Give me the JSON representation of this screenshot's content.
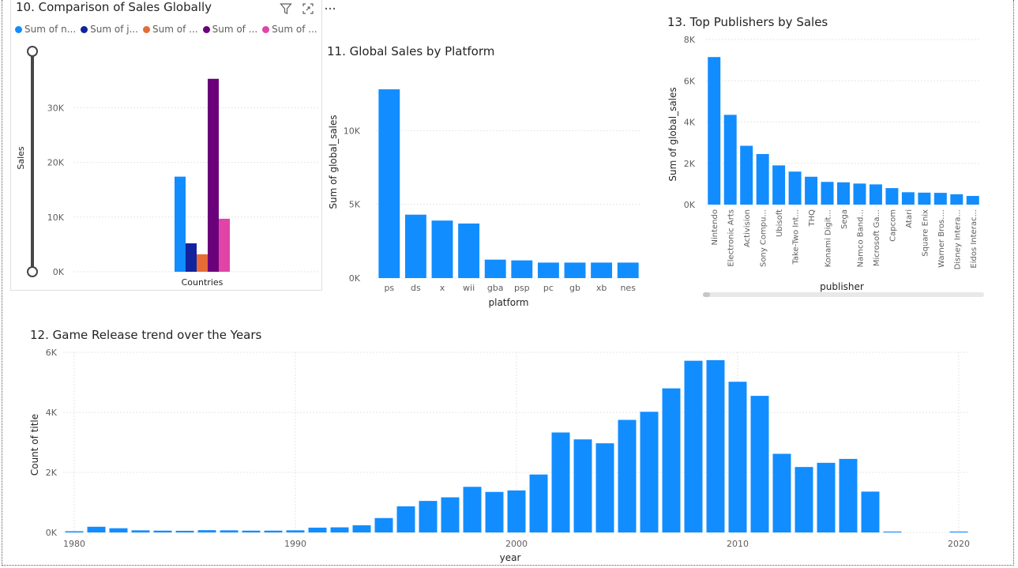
{
  "colors": {
    "blue": "#118DFF",
    "navy": "#12239E",
    "orange": "#E66C37",
    "purple": "#6B007B",
    "pink": "#E044A7",
    "grid": "#e6e6e6",
    "axis_text": "#605e5c"
  },
  "header_icons": [
    "filter-icon",
    "focus-mode-icon",
    "more-options-icon"
  ],
  "chart_data": [
    {
      "id": "comparison",
      "type": "bar",
      "title": "10. Comparison of Sales Globally",
      "ylabel": "Sales",
      "xlabel": "",
      "categories": [
        "Countries"
      ],
      "ylim": [
        0,
        37000
      ],
      "yticks": [
        0,
        10000,
        20000,
        30000
      ],
      "ytick_labels": [
        "0K",
        "10K",
        "20K",
        "30K"
      ],
      "series": [
        {
          "name": "Sum of n...",
          "color": "#118DFF",
          "values": [
            17400
          ]
        },
        {
          "name": "Sum of j...",
          "color": "#12239E",
          "values": [
            5200
          ]
        },
        {
          "name": "Sum of ...",
          "color": "#E66C37",
          "values": [
            3200
          ]
        },
        {
          "name": "Sum of ...",
          "color": "#6B007B",
          "values": [
            35300
          ]
        },
        {
          "name": "Sum of ...",
          "color": "#E044A7",
          "values": [
            9700
          ]
        }
      ]
    },
    {
      "id": "platform",
      "type": "bar",
      "title": "11. Global Sales by Platform",
      "ylabel": "Sum of global_sales",
      "xlabel": "platform",
      "categories": [
        "ps",
        "ds",
        "x",
        "wii",
        "gba",
        "psp",
        "pc",
        "gb",
        "xb",
        "nes"
      ],
      "values": [
        12800,
        4300,
        3900,
        3700,
        1250,
        1200,
        1050,
        1050,
        1050,
        1050
      ],
      "ylim": [
        0,
        13500
      ],
      "yticks": [
        0,
        5000,
        10000
      ],
      "ytick_labels": [
        "0K",
        "5K",
        "10K"
      ]
    },
    {
      "id": "publishers",
      "type": "bar",
      "title": "13. Top Publishers by Sales",
      "ylabel": "Sum of global_sales",
      "xlabel": "publisher",
      "categories": [
        "Nintendo",
        "Electronic Arts",
        "Activision",
        "Sony Compu...",
        "Ubisoft",
        "Take-Two Int...",
        "THQ",
        "Konami Digit...",
        "Sega",
        "Namco Band...",
        "Microsoft Ga...",
        "Capcom",
        "Atari",
        "Square Enix",
        "Warner Bros....",
        "Disney Intera...",
        "Eidos Interac..."
      ],
      "values": [
        7150,
        4350,
        2850,
        2450,
        1900,
        1600,
        1350,
        1100,
        1080,
        1020,
        980,
        800,
        600,
        580,
        570,
        500,
        420
      ],
      "ylim": [
        0,
        8000
      ],
      "yticks": [
        0,
        2000,
        4000,
        6000,
        8000
      ],
      "ytick_labels": [
        "0K",
        "2K",
        "4K",
        "6K",
        "8K"
      ]
    },
    {
      "id": "trend",
      "type": "bar",
      "title": "12. Game Release trend over the Years",
      "ylabel": "Count of title",
      "xlabel": "year",
      "x": [
        1980,
        1981,
        1982,
        1983,
        1984,
        1985,
        1986,
        1987,
        1988,
        1989,
        1990,
        1991,
        1992,
        1993,
        1994,
        1995,
        1996,
        1997,
        1998,
        1999,
        2000,
        2001,
        2002,
        2003,
        2004,
        2005,
        2006,
        2007,
        2008,
        2009,
        2010,
        2011,
        2012,
        2013,
        2014,
        2015,
        2016,
        2017,
        2020
      ],
      "values": [
        40,
        190,
        140,
        70,
        60,
        55,
        75,
        70,
        60,
        60,
        70,
        160,
        170,
        240,
        480,
        870,
        1050,
        1170,
        1520,
        1350,
        1400,
        1930,
        3330,
        3100,
        2970,
        3750,
        4020,
        4800,
        5720,
        5740,
        5020,
        4550,
        2620,
        2180,
        2320,
        2450,
        1360,
        30,
        30
      ],
      "xlim": [
        1979.5,
        2020.5
      ],
      "xticks": [
        1980,
        1990,
        2000,
        2010,
        2020
      ],
      "xtick_labels": [
        "1980",
        "1990",
        "2000",
        "2010",
        "2020"
      ],
      "ylim": [
        0,
        6000
      ],
      "yticks": [
        0,
        2000,
        4000,
        6000
      ],
      "ytick_labels": [
        "0K",
        "2K",
        "4K",
        "6K"
      ]
    }
  ]
}
